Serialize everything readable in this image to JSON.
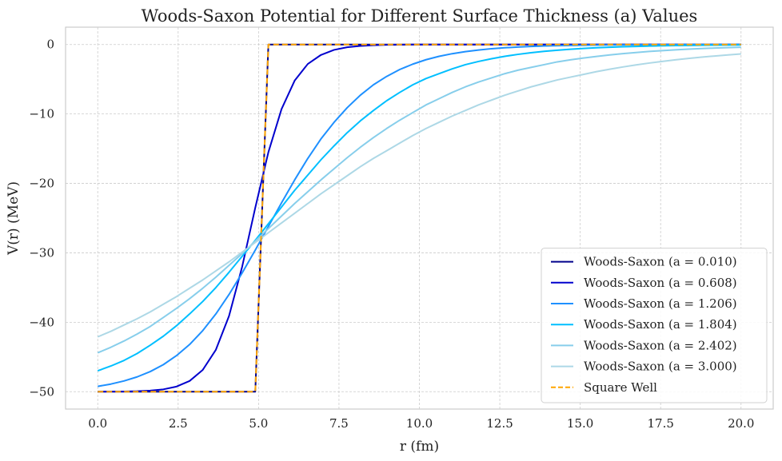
{
  "chart_data": {
    "type": "line",
    "title": "Woods-Saxon Potential for Different Surface Thickness (a) Values",
    "xlabel": "r (fm)",
    "ylabel": "V(r) (MeV)",
    "xlim": [
      -1.0,
      21.0
    ],
    "ylim": [
      -52.5,
      2.5
    ],
    "xticks": [
      0.0,
      2.5,
      5.0,
      7.5,
      10.0,
      12.5,
      15.0,
      17.5,
      20.0
    ],
    "xtick_labels": [
      "0.0",
      "2.5",
      "5.0",
      "7.5",
      "10.0",
      "12.5",
      "15.0",
      "17.5",
      "20.0"
    ],
    "yticks": [
      0,
      -10,
      -20,
      -30,
      -40,
      -50
    ],
    "ytick_labels": [
      "0",
      "−10",
      "−20",
      "−30",
      "−40",
      "−50"
    ],
    "grid": true,
    "legend_position": "lower right",
    "x": [
      0.0,
      0.408,
      0.816,
      1.224,
      1.633,
      2.041,
      2.449,
      2.857,
      3.265,
      3.673,
      4.082,
      4.49,
      4.898,
      5.306,
      5.714,
      6.122,
      6.531,
      6.939,
      7.347,
      7.755,
      8.163,
      8.571,
      8.98,
      9.388,
      9.796,
      10.204,
      10.612,
      11.02,
      11.429,
      11.837,
      12.245,
      12.653,
      13.061,
      13.469,
      13.878,
      14.286,
      14.694,
      15.102,
      15.51,
      15.918,
      16.327,
      16.735,
      17.143,
      17.551,
      17.959,
      18.367,
      18.776,
      19.184,
      19.592,
      20.0
    ],
    "series": [
      {
        "name": "Woods-Saxon (a = 0.010)",
        "color": "#00008b",
        "dashed": false,
        "values": [
          -50,
          -50,
          -50,
          -50,
          -50,
          -50,
          -50,
          -50,
          -50,
          -50,
          -50,
          -50,
          -50,
          0,
          0,
          0,
          0,
          0,
          0,
          0,
          0,
          0,
          0,
          0,
          0,
          0,
          0,
          0,
          0,
          0,
          0,
          0,
          0,
          0,
          0,
          0,
          0,
          0,
          0,
          0,
          0,
          0,
          0,
          0,
          0,
          0,
          0,
          0,
          0,
          0
        ]
      },
      {
        "name": "Woods-Saxon (a = 0.608)",
        "color": "#0000cd",
        "dashed": false,
        "values": [
          -49.99,
          -49.98,
          -49.97,
          -49.93,
          -49.84,
          -49.66,
          -49.26,
          -48.45,
          -46.86,
          -43.96,
          -39.1,
          -32.0,
          -23.5,
          -15.5,
          -9.3,
          -5.2,
          -2.8,
          -1.5,
          -0.77,
          -0.39,
          -0.2,
          -0.1,
          -0.05,
          -0.03,
          -0.01,
          -0.01,
          0,
          0,
          0,
          0,
          0,
          0,
          0,
          0,
          0,
          0,
          0,
          0,
          0,
          0,
          0,
          0,
          0,
          0,
          0,
          0,
          0,
          0,
          0,
          0
        ]
      },
      {
        "name": "Woods-Saxon (a = 1.206)",
        "color": "#1e90ff",
        "dashed": false,
        "values": [
          -49.23,
          -48.9,
          -48.45,
          -47.87,
          -47.1,
          -46.1,
          -44.8,
          -43.2,
          -41.2,
          -38.8,
          -36.0,
          -32.9,
          -29.6,
          -26.2,
          -22.8,
          -19.5,
          -16.4,
          -13.6,
          -11.2,
          -9.1,
          -7.3,
          -5.8,
          -4.6,
          -3.6,
          -2.82,
          -2.19,
          -1.7,
          -1.32,
          -1.02,
          -0.79,
          -0.6,
          -0.47,
          -0.36,
          -0.28,
          -0.21,
          -0.16,
          -0.13,
          -0.1,
          -0.08,
          -0.06,
          -0.04,
          -0.03,
          -0.03,
          -0.02,
          -0.02,
          -0.01,
          -0.01,
          -0.01,
          -0.01,
          -0.01
        ]
      },
      {
        "name": "Woods-Saxon (a = 1.804)",
        "color": "#00bfff",
        "dashed": false,
        "values": [
          -46.99,
          -46.3,
          -45.5,
          -44.5,
          -43.3,
          -42.0,
          -40.5,
          -38.8,
          -37.0,
          -35.0,
          -32.8,
          -30.5,
          -28.2,
          -25.8,
          -23.4,
          -21.0,
          -18.8,
          -16.6,
          -14.6,
          -12.7,
          -11.0,
          -9.5,
          -8.1,
          -6.9,
          -5.8,
          -4.9,
          -4.2,
          -3.5,
          -2.9,
          -2.44,
          -2.04,
          -1.7,
          -1.42,
          -1.18,
          -0.98,
          -0.82,
          -0.68,
          -0.56,
          -0.47,
          -0.39,
          -0.32,
          -0.27,
          -0.22,
          -0.18,
          -0.15,
          -0.13,
          -0.1,
          -0.09,
          -0.07,
          -0.06
        ]
      },
      {
        "name": "Woods-Saxon (a = 2.402)",
        "color": "#87ceeb",
        "dashed": false,
        "values": [
          -44.4,
          -43.6,
          -42.7,
          -41.7,
          -40.6,
          -39.3,
          -38.0,
          -36.6,
          -35.1,
          -33.5,
          -31.8,
          -30.1,
          -28.3,
          -26.5,
          -24.7,
          -22.9,
          -21.2,
          -19.5,
          -17.9,
          -16.3,
          -14.8,
          -13.4,
          -12.1,
          -10.9,
          -9.8,
          -8.7,
          -7.8,
          -6.9,
          -6.1,
          -5.4,
          -4.8,
          -4.2,
          -3.7,
          -3.3,
          -2.9,
          -2.5,
          -2.2,
          -1.95,
          -1.71,
          -1.5,
          -1.31,
          -1.15,
          -1.0,
          -0.88,
          -0.77,
          -0.67,
          -0.58,
          -0.51,
          -0.45,
          -0.39
        ]
      },
      {
        "name": "Woods-Saxon (a = 3.000)",
        "color": "#add8e6",
        "dashed": false,
        "values": [
          -42.1,
          -41.3,
          -40.4,
          -39.5,
          -38.5,
          -37.4,
          -36.3,
          -35.1,
          -33.9,
          -32.6,
          -31.3,
          -29.9,
          -28.5,
          -27.1,
          -25.7,
          -24.3,
          -22.9,
          -21.5,
          -20.2,
          -18.9,
          -17.6,
          -16.4,
          -15.3,
          -14.2,
          -13.1,
          -12.1,
          -11.2,
          -10.3,
          -9.5,
          -8.7,
          -8.0,
          -7.3,
          -6.7,
          -6.1,
          -5.6,
          -5.1,
          -4.7,
          -4.3,
          -3.9,
          -3.55,
          -3.23,
          -2.94,
          -2.67,
          -2.43,
          -2.2,
          -2.0,
          -1.82,
          -1.65,
          -1.5,
          -1.36
        ]
      },
      {
        "name": "Square Well",
        "color": "#ffa500",
        "dashed": true,
        "values": [
          -50,
          -50,
          -50,
          -50,
          -50,
          -50,
          -50,
          -50,
          -50,
          -50,
          -50,
          -50,
          -50,
          0,
          0,
          0,
          0,
          0,
          0,
          0,
          0,
          0,
          0,
          0,
          0,
          0,
          0,
          0,
          0,
          0,
          0,
          0,
          0,
          0,
          0,
          0,
          0,
          0,
          0,
          0,
          0,
          0,
          0,
          0,
          0,
          0,
          0,
          0,
          0,
          0
        ]
      }
    ]
  }
}
